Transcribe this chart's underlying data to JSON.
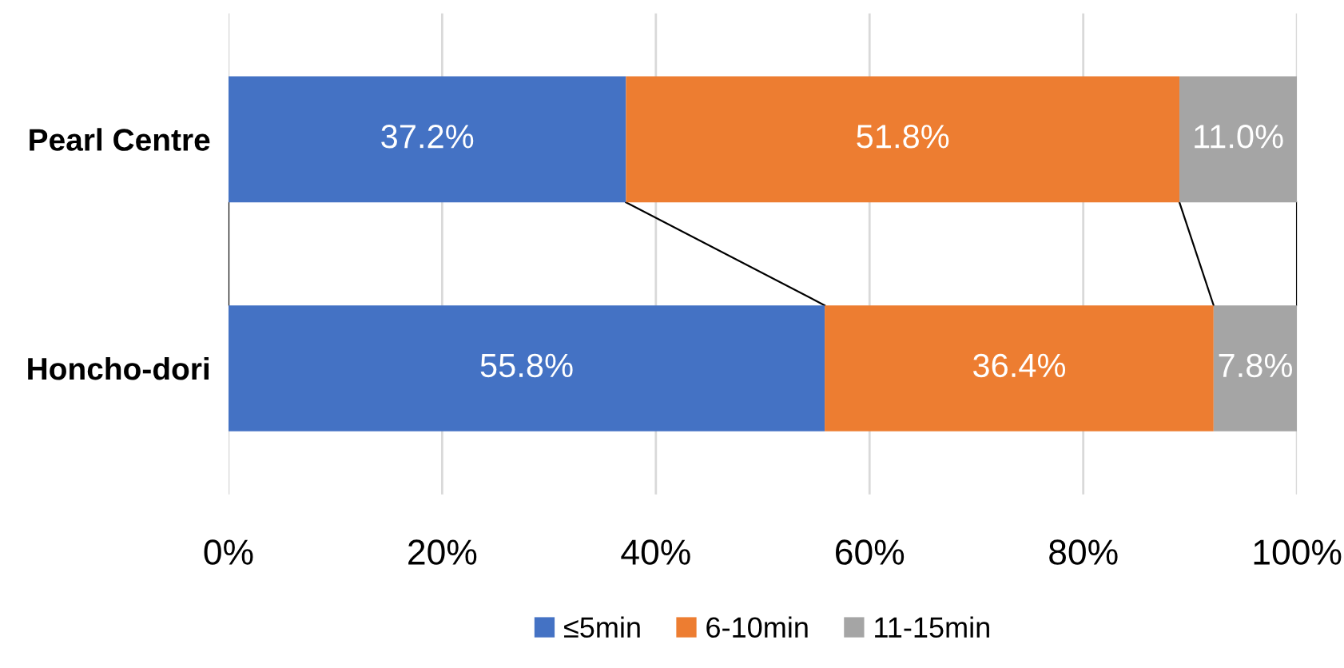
{
  "chart_data": {
    "type": "bar",
    "orientation": "horizontal",
    "stacked": true,
    "categories": [
      "Pearl Centre",
      "Honcho-dori"
    ],
    "series": [
      {
        "name": "≤5min",
        "color": "#4472c4",
        "values": [
          37.2,
          55.8
        ],
        "value_labels": [
          "37.2%",
          "55.8%"
        ]
      },
      {
        "name": "6-10min",
        "color": "#ed7d31",
        "values": [
          51.8,
          36.4
        ],
        "value_labels": [
          "51.8%",
          "36.4%"
        ]
      },
      {
        "name": "11-15min",
        "color": "#a5a5a5",
        "values": [
          11.0,
          7.8
        ],
        "value_labels": [
          "11.0%",
          "7.8%"
        ]
      }
    ],
    "xlim": [
      0,
      100
    ],
    "xticks": [
      {
        "value": 0,
        "label": "0%"
      },
      {
        "value": 20,
        "label": "20%"
      },
      {
        "value": 40,
        "label": "40%"
      },
      {
        "value": 60,
        "label": "60%"
      },
      {
        "value": 80,
        "label": "80%"
      },
      {
        "value": 100,
        "label": "100%"
      }
    ],
    "grid": "x",
    "legend": "bottom"
  }
}
